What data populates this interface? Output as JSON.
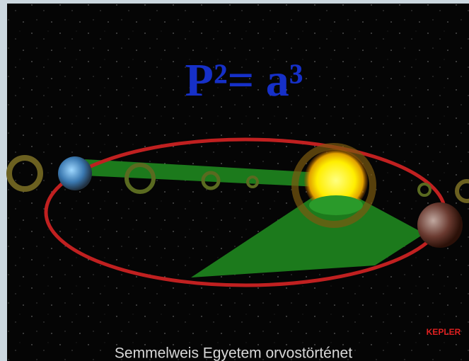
{
  "formula": "P²= a³",
  "credit": "KEPLER",
  "caption": "Semmelweis Egyetem orvostörténet"
}
